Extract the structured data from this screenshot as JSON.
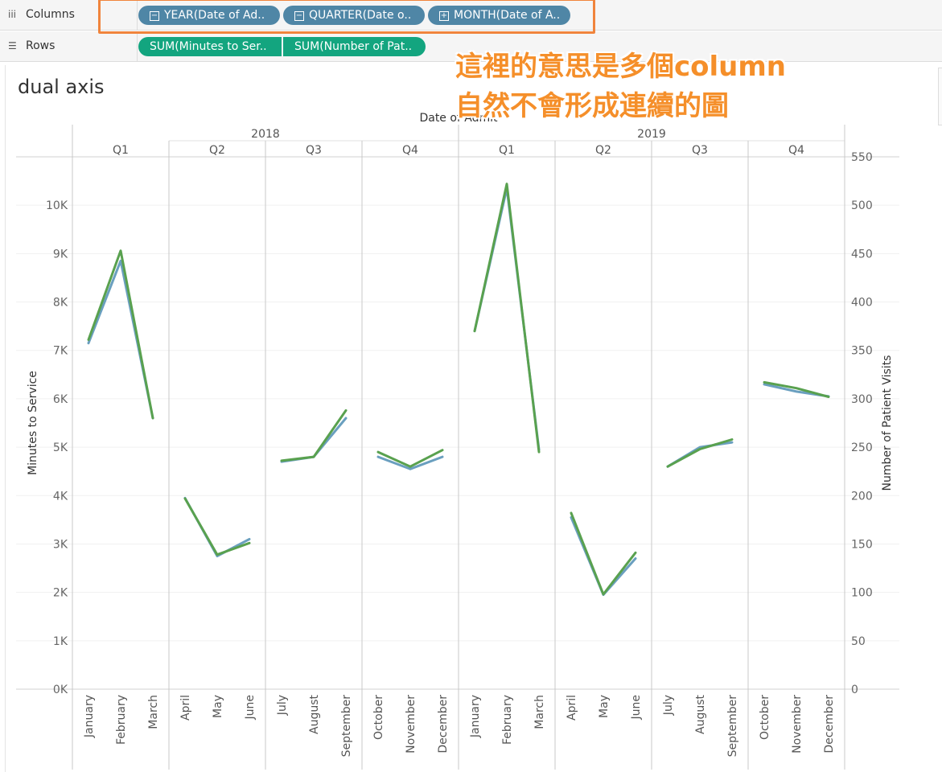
{
  "columns_shelf": {
    "label": "Columns",
    "pills": [
      "YEAR(Date of Ad..",
      "QUARTER(Date o..",
      "MONTH(Date of A.."
    ]
  },
  "rows_shelf": {
    "label": "Rows",
    "pills": [
      "SUM(Minutes to Ser..",
      "SUM(Number of Pat.."
    ]
  },
  "sheet": {
    "title": "dual axis"
  },
  "annotation": {
    "line1": "這裡的意思是多個column",
    "line2": "自然不會形成連續的圖",
    "color": "#f58f2a"
  },
  "chart_data": {
    "type": "line",
    "title": "Date of Admit",
    "years": [
      {
        "label": "2018",
        "quarters": [
          {
            "label": "Q1",
            "months": [
              "January",
              "February",
              "March"
            ]
          },
          {
            "label": "Q2",
            "months": [
              "April",
              "May",
              "June"
            ]
          },
          {
            "label": "Q3",
            "months": [
              "July",
              "August",
              "September"
            ]
          },
          {
            "label": "Q4",
            "months": [
              "October",
              "November",
              "December"
            ]
          }
        ]
      },
      {
        "label": "2019",
        "quarters": [
          {
            "label": "Q1",
            "months": [
              "January",
              "February",
              "March"
            ]
          },
          {
            "label": "Q2",
            "months": [
              "April",
              "May",
              "June"
            ]
          },
          {
            "label": "Q3",
            "months": [
              "July",
              "August",
              "September"
            ]
          },
          {
            "label": "Q4",
            "months": [
              "October",
              "November",
              "December"
            ]
          }
        ]
      }
    ],
    "left_axis": {
      "label": "Minutes to Service",
      "ylim": [
        0,
        11000
      ],
      "ticks": [
        0,
        1000,
        2000,
        3000,
        4000,
        5000,
        6000,
        7000,
        8000,
        9000,
        10000
      ],
      "tick_labels": [
        "0K",
        "1K",
        "2K",
        "3K",
        "4K",
        "5K",
        "6K",
        "7K",
        "8K",
        "9K",
        "10K"
      ]
    },
    "right_axis": {
      "label": "Number of Patient Visits",
      "ylim": [
        0,
        550
      ],
      "ticks": [
        0,
        50,
        100,
        150,
        200,
        250,
        300,
        350,
        400,
        450,
        500,
        550
      ],
      "tick_labels": [
        "0",
        "50",
        "100",
        "150",
        "200",
        "250",
        "300",
        "350",
        "400",
        "450",
        "500",
        "550"
      ]
    },
    "series": [
      {
        "axis": "left",
        "color": "#6a9fbf",
        "values": [
          7150,
          8850,
          5600,
          3950,
          2750,
          3100,
          4700,
          4800,
          5600,
          4800,
          4550,
          4800,
          7400,
          10350,
          4950,
          3550,
          1950,
          2700,
          4600,
          5000,
          5100,
          6300,
          6150,
          6050
        ]
      },
      {
        "axis": "right",
        "color": "#59a14f",
        "values": [
          361,
          453,
          280,
          197,
          139,
          151,
          236,
          240,
          288,
          245,
          230,
          247,
          370,
          522,
          245,
          182,
          98,
          141,
          230,
          248,
          258,
          317,
          311,
          302
        ]
      }
    ],
    "grid": true,
    "legend": "none"
  }
}
